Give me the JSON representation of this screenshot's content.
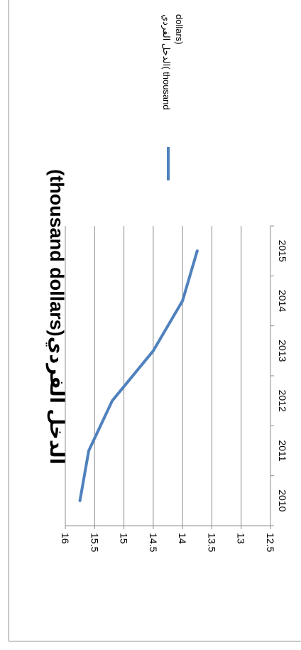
{
  "chart_data": {
    "type": "line",
    "title": "(thousand dollars)الدخل الفردي",
    "categories": [
      "2010",
      "2011",
      "2012",
      "2013",
      "2014",
      "2015"
    ],
    "series": [
      {
        "name": "الدخل الفردي( thousand dollars)",
        "values": [
          15.75,
          15.6,
          15.2,
          14.5,
          14.0,
          13.75
        ],
        "color": "#4f81bd"
      }
    ],
    "legend": {
      "line1": "الدخل الفردي( thousand",
      "line2": "dollars)"
    },
    "ylim": [
      12.5,
      16
    ],
    "yticks": [
      "16",
      "15.5",
      "15",
      "14.5",
      "14",
      "13.5",
      "13",
      "12.5"
    ],
    "grid": true,
    "legend_placement": "right",
    "orientation": "rotated-90-clockwise"
  }
}
